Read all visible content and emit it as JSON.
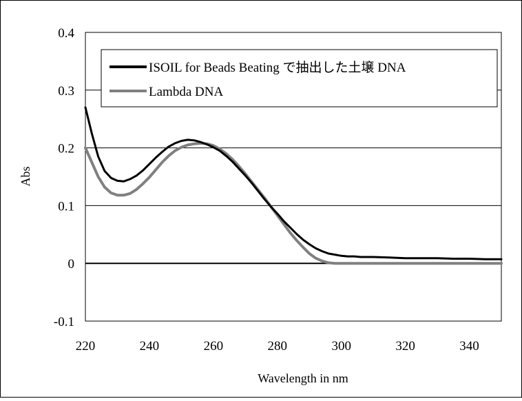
{
  "chart_data": {
    "type": "line",
    "title": "",
    "xlabel": "Wavelength in nm",
    "ylabel": "Abs",
    "xlim": [
      220,
      350
    ],
    "ylim": [
      -0.1,
      0.4
    ],
    "x_ticks": [
      220,
      240,
      260,
      280,
      300,
      320,
      340
    ],
    "y_ticks": [
      -0.1,
      0,
      0.1,
      0.2,
      0.3,
      0.4
    ],
    "x_tick_labels": [
      "220",
      "240",
      "260",
      "280",
      "300",
      "320",
      "340"
    ],
    "y_tick_labels": [
      "-0.1",
      "0",
      "0.1",
      "0.2",
      "0.3",
      "0.4"
    ],
    "grid": "horizontal",
    "legend": "top-right",
    "series": [
      {
        "name": "ISOIL for Beads Beating で抽出した土壌 DNA",
        "color": "#000000",
        "x": [
          220,
          222,
          224,
          226,
          228,
          230,
          232,
          234,
          236,
          238,
          240,
          242,
          244,
          246,
          248,
          250,
          252,
          254,
          256,
          258,
          260,
          262,
          264,
          266,
          268,
          270,
          272,
          274,
          276,
          278,
          280,
          282,
          284,
          286,
          288,
          290,
          292,
          294,
          296,
          298,
          300,
          302,
          304,
          306,
          310,
          315,
          320,
          325,
          330,
          335,
          340,
          345,
          350
        ],
        "y": [
          0.27,
          0.225,
          0.185,
          0.16,
          0.148,
          0.143,
          0.142,
          0.146,
          0.152,
          0.161,
          0.172,
          0.183,
          0.193,
          0.202,
          0.208,
          0.212,
          0.214,
          0.213,
          0.21,
          0.206,
          0.201,
          0.195,
          0.186,
          0.176,
          0.164,
          0.152,
          0.139,
          0.125,
          0.111,
          0.098,
          0.086,
          0.073,
          0.062,
          0.051,
          0.041,
          0.033,
          0.026,
          0.021,
          0.017,
          0.015,
          0.013,
          0.012,
          0.012,
          0.011,
          0.011,
          0.01,
          0.009,
          0.009,
          0.009,
          0.008,
          0.008,
          0.007,
          0.007
        ]
      },
      {
        "name": "Lambda DNA",
        "color": "#808080",
        "x": [
          220,
          222,
          224,
          226,
          228,
          230,
          232,
          234,
          236,
          238,
          240,
          242,
          244,
          246,
          248,
          250,
          252,
          254,
          256,
          258,
          260,
          262,
          264,
          266,
          268,
          270,
          272,
          274,
          276,
          278,
          280,
          282,
          284,
          286,
          288,
          290,
          292,
          294,
          296,
          298,
          300,
          302,
          304,
          306,
          310,
          315,
          320,
          325,
          330,
          335,
          340,
          345,
          350
        ],
        "y": [
          0.2,
          0.175,
          0.15,
          0.132,
          0.122,
          0.118,
          0.118,
          0.121,
          0.128,
          0.138,
          0.149,
          0.162,
          0.175,
          0.186,
          0.195,
          0.201,
          0.205,
          0.207,
          0.208,
          0.207,
          0.204,
          0.198,
          0.19,
          0.18,
          0.168,
          0.155,
          0.141,
          0.127,
          0.113,
          0.098,
          0.083,
          0.068,
          0.053,
          0.04,
          0.028,
          0.017,
          0.009,
          0.004,
          0.001,
          0,
          0,
          0,
          0,
          0,
          0,
          0,
          0,
          0,
          0,
          0,
          0,
          0,
          0
        ]
      }
    ]
  }
}
